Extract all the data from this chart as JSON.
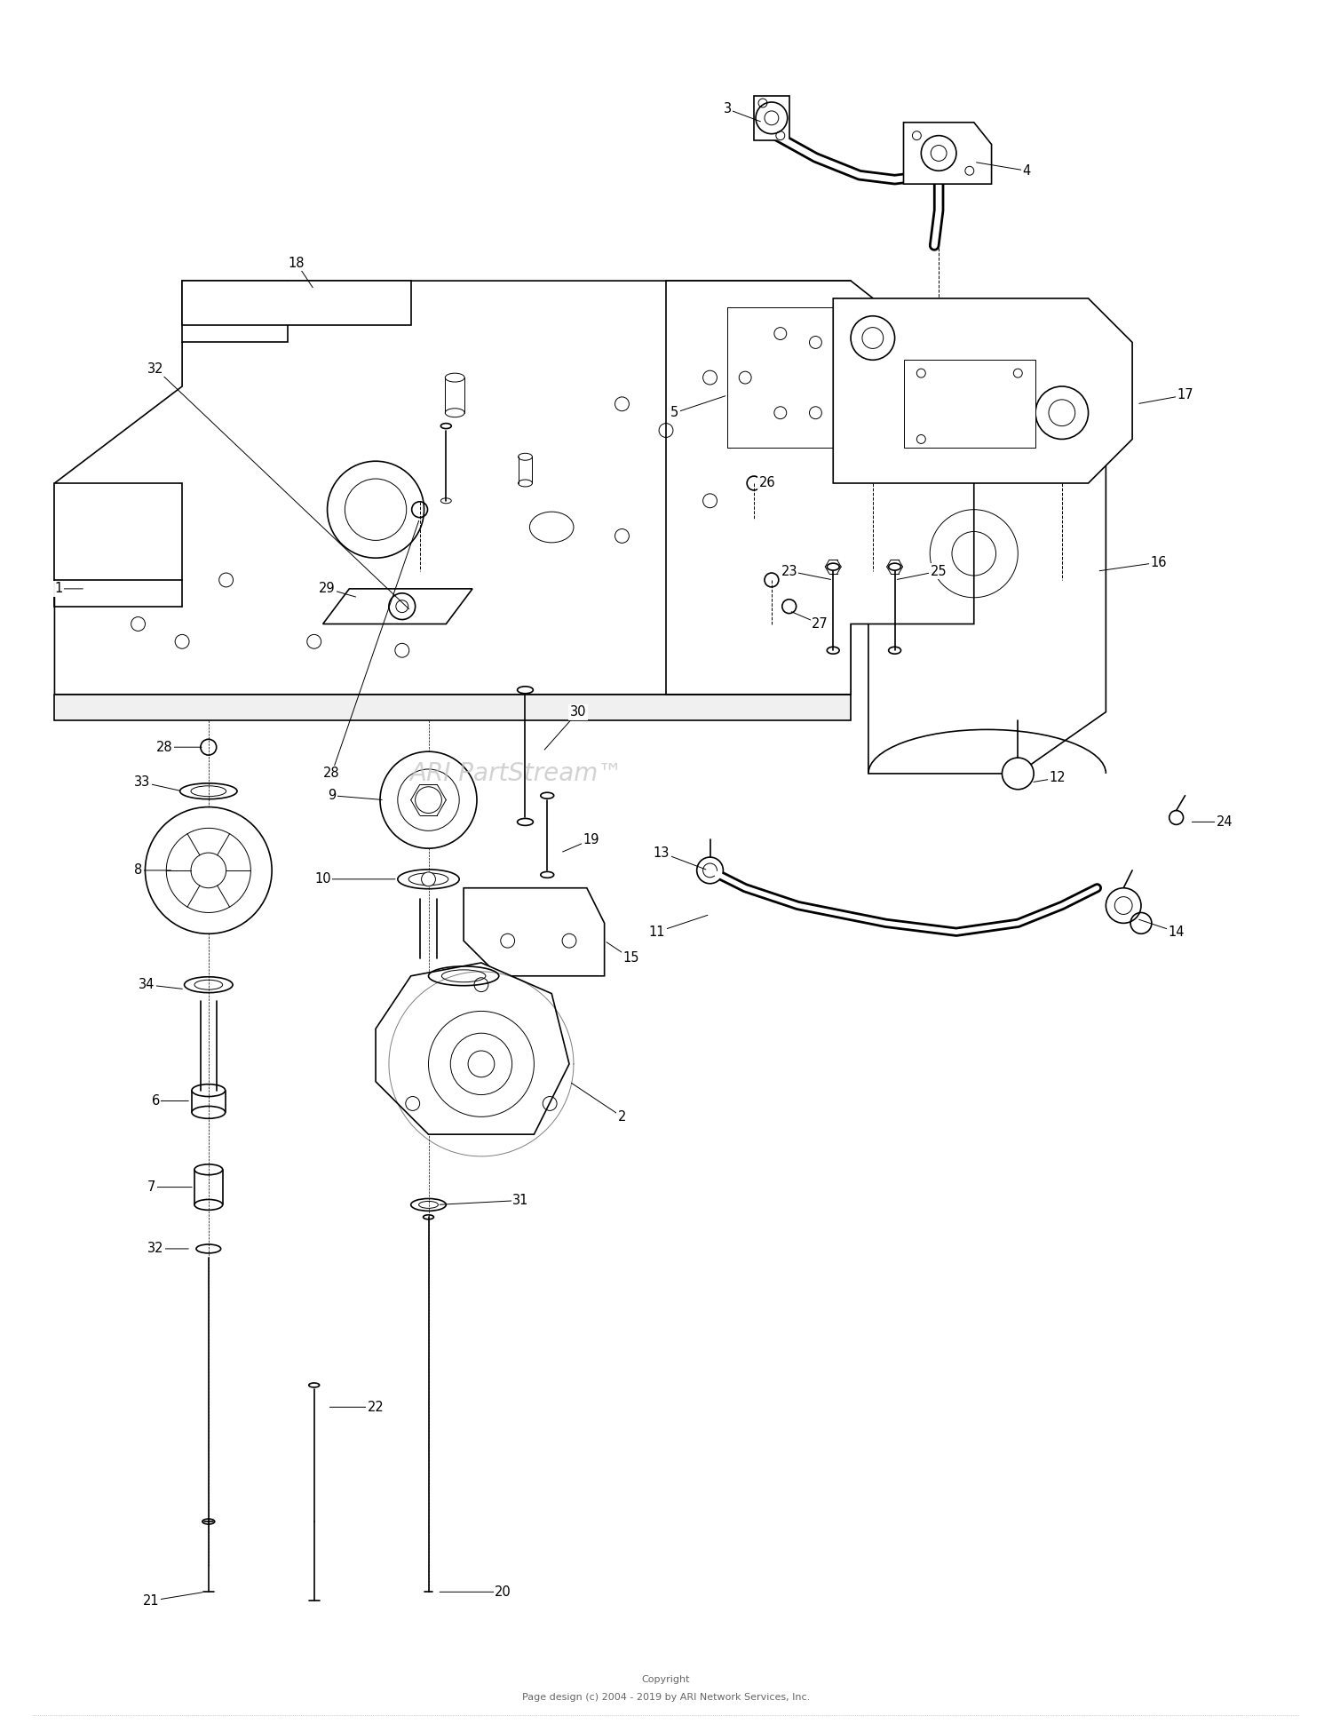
{
  "copyright_line1": "Copyright",
  "copyright_line2": "Page design (c) 2004 - 2019 by ARI Network Services, Inc.",
  "watermark": "ARI PartStream™",
  "bg": "#ffffff",
  "lc": "#000000",
  "wm_color": "#c0c0c0",
  "figsize": [
    15.0,
    19.41
  ],
  "dpi": 100
}
